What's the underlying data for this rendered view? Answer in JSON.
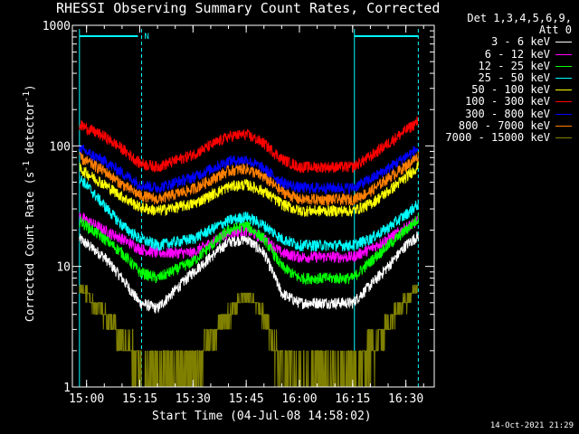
{
  "chart_data": {
    "type": "line",
    "title": "RHESSI Observing Summary Count Rates, Corrected",
    "xlabel": "Start Time (04-Jul-08 14:58:02)",
    "ylabel": "Corrected Count Rate (s⁻¹ detector⁻¹)",
    "yscale": "log",
    "ylim": [
      1,
      1000
    ],
    "xlim_minutes": [
      -4,
      98
    ],
    "x_ticks": [
      {
        "label": "15:00",
        "minutes": 0
      },
      {
        "label": "15:15",
        "minutes": 15
      },
      {
        "label": "15:30",
        "minutes": 30
      },
      {
        "label": "15:45",
        "minutes": 45
      },
      {
        "label": "16:00",
        "minutes": 60
      },
      {
        "label": "16:15",
        "minutes": 75
      },
      {
        "label": "16:30",
        "minutes": 90
      }
    ],
    "y_ticks": [
      {
        "label": "1",
        "value": 1
      },
      {
        "label": "10",
        "value": 10
      },
      {
        "label": "100",
        "value": 100
      },
      {
        "label": "1000",
        "value": 1000
      }
    ],
    "night_flag_label": "N",
    "night_marker_minutes": [
      -2,
      15.5,
      75.5,
      93.5
    ],
    "legend_header": [
      "Det 1,3,4,5,6,9,",
      "Att 0"
    ],
    "series": [
      {
        "name": "3 - 6 keV",
        "color": "#ffffff",
        "minutes": [
          -2,
          5,
          10,
          15,
          20,
          30,
          40,
          45,
          50,
          55,
          60,
          65,
          70,
          75,
          80,
          85,
          90,
          93.5
        ],
        "values": [
          17,
          12,
          8,
          5,
          4.5,
          9,
          16,
          17,
          13,
          6,
          5,
          5,
          5,
          5,
          7,
          10,
          15,
          18
        ]
      },
      {
        "name": "6 - 12 keV",
        "color": "#ff00ff",
        "minutes": [
          -2,
          5,
          10,
          15,
          20,
          30,
          40,
          45,
          50,
          55,
          60,
          65,
          70,
          75,
          80,
          85,
          90,
          93.5
        ],
        "values": [
          26,
          20,
          17,
          14,
          13,
          13,
          19,
          20,
          17,
          13,
          12,
          12,
          12,
          12,
          14,
          17,
          21,
          24
        ]
      },
      {
        "name": "12 - 25 keV",
        "color": "#00ff00",
        "minutes": [
          -2,
          5,
          10,
          15,
          20,
          30,
          40,
          45,
          50,
          55,
          60,
          65,
          70,
          75,
          80,
          85,
          90,
          93.5
        ],
        "values": [
          24,
          17,
          13,
          9,
          8,
          11,
          20,
          22,
          17,
          10,
          8,
          8,
          8,
          8,
          11,
          15,
          20,
          25
        ]
      },
      {
        "name": "25 - 50 keV",
        "color": "#00ffff",
        "minutes": [
          -2,
          5,
          10,
          15,
          20,
          30,
          40,
          45,
          50,
          55,
          60,
          65,
          70,
          75,
          80,
          85,
          90,
          93.5
        ],
        "values": [
          55,
          32,
          22,
          17,
          15,
          17,
          24,
          26,
          22,
          17,
          15,
          15,
          15,
          15,
          17,
          21,
          27,
          33
        ]
      },
      {
        "name": "50 - 100 keV",
        "color": "#ffff00",
        "minutes": [
          -2,
          5,
          10,
          15,
          20,
          30,
          40,
          45,
          50,
          55,
          60,
          65,
          70,
          75,
          80,
          85,
          90,
          93.5
        ],
        "values": [
          65,
          48,
          38,
          31,
          29,
          33,
          46,
          48,
          42,
          33,
          29,
          29,
          29,
          29,
          33,
          42,
          55,
          68
        ]
      },
      {
        "name": "100 - 300 keV",
        "color": "#ff0000",
        "minutes": [
          -2,
          5,
          10,
          15,
          20,
          30,
          40,
          45,
          50,
          55,
          60,
          65,
          70,
          75,
          80,
          85,
          90,
          93.5
        ],
        "values": [
          150,
          120,
          95,
          72,
          67,
          85,
          120,
          125,
          105,
          78,
          67,
          67,
          67,
          67,
          82,
          105,
          135,
          160
        ]
      },
      {
        "name": "300 - 800 keV",
        "color": "#0000ff",
        "minutes": [
          -2,
          5,
          10,
          15,
          20,
          30,
          40,
          45,
          50,
          55,
          60,
          65,
          70,
          75,
          80,
          85,
          90,
          93.5
        ],
        "values": [
          95,
          75,
          60,
          48,
          45,
          55,
          75,
          77,
          65,
          50,
          45,
          45,
          45,
          45,
          53,
          65,
          82,
          95
        ]
      },
      {
        "name": "800 - 7000 keV",
        "color": "#ff8000",
        "minutes": [
          -2,
          5,
          10,
          15,
          20,
          30,
          40,
          45,
          50,
          55,
          60,
          65,
          70,
          75,
          80,
          85,
          90,
          93.5
        ],
        "values": [
          80,
          62,
          48,
          39,
          36,
          44,
          62,
          65,
          55,
          42,
          36,
          36,
          36,
          36,
          42,
          54,
          68,
          82
        ]
      },
      {
        "name": "7000 - 15000 keV",
        "color": "#808000",
        "minutes": [
          -2,
          5,
          10,
          15,
          20,
          30,
          40,
          45,
          50,
          55,
          60,
          65,
          70,
          75,
          80,
          85,
          90,
          93.5
        ],
        "values": [
          7,
          4,
          2.5,
          1.5,
          1.2,
          1.5,
          4,
          6,
          4,
          1.5,
          1.2,
          1.2,
          1.2,
          1.2,
          2,
          3.5,
          5,
          7
        ]
      }
    ]
  },
  "timestamp": "14-Oct-2021 21:29"
}
